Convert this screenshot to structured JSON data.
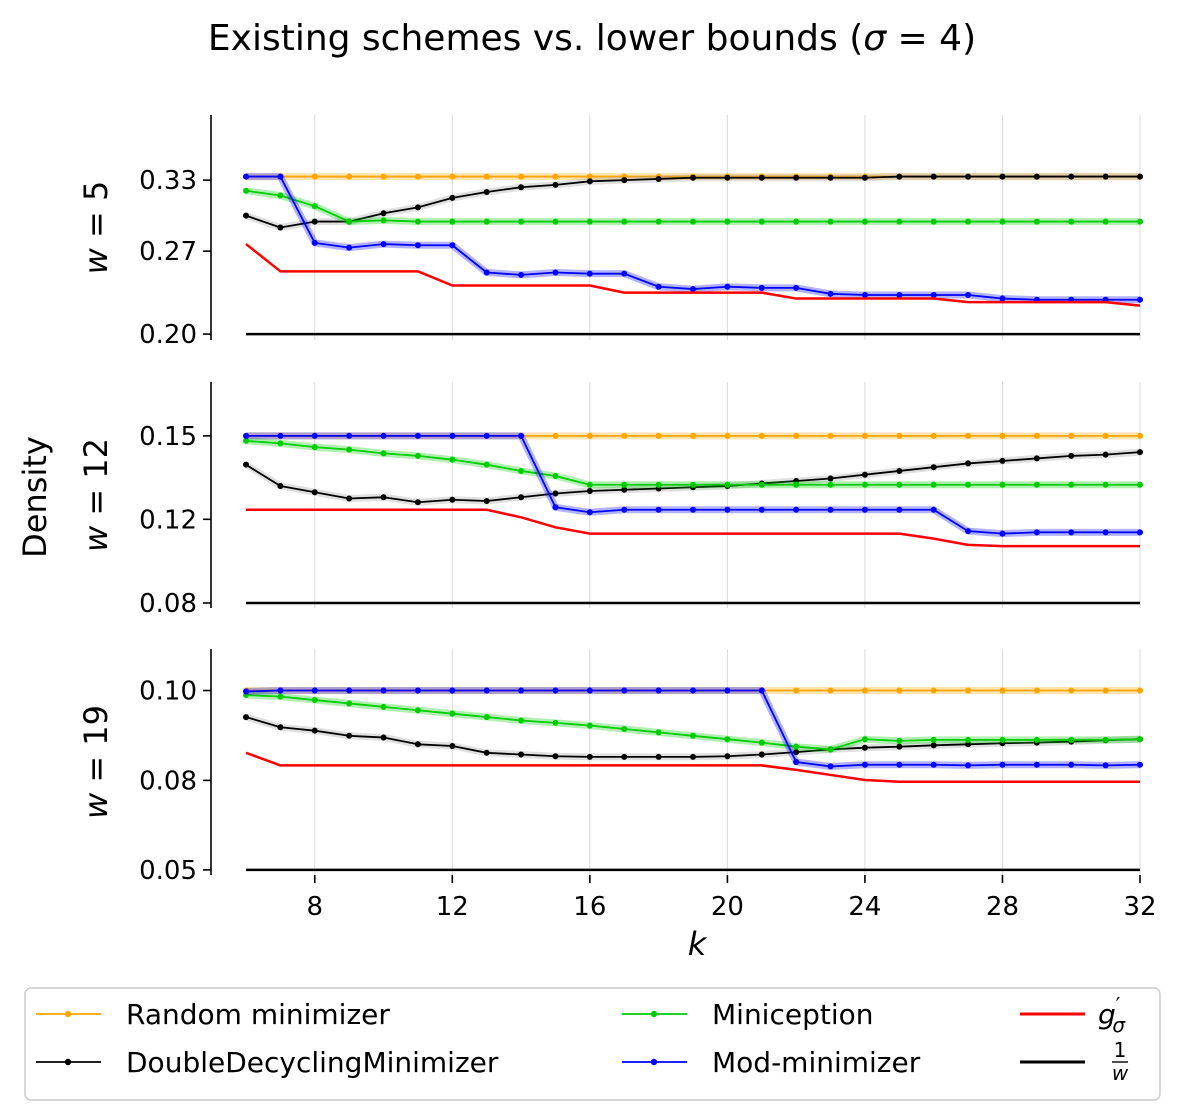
{
  "chart_data": {
    "type": "line",
    "title": "Existing schemes vs. lower bounds (σ = 4)",
    "title_parts": {
      "prefix": "Existing schemes vs. lower bounds (",
      "sigma": "σ",
      "suffix": " = 4)"
    },
    "shared_ylabel": "Density",
    "xlabel": "k",
    "x": [
      6,
      7,
      8,
      9,
      10,
      11,
      12,
      13,
      14,
      15,
      16,
      17,
      18,
      19,
      20,
      21,
      22,
      23,
      24,
      25,
      26,
      27,
      28,
      29,
      30,
      31,
      32
    ],
    "xticks": [
      8,
      12,
      16,
      20,
      24,
      28,
      32
    ],
    "xlim": [
      6,
      32
    ],
    "colors": {
      "random": "#ffa500",
      "double_decycling": "#000000",
      "miniception": "#00cc00",
      "mod": "#0000ff",
      "g_sigma": "#ff0000",
      "inv_w": "#000000"
    },
    "legend": [
      {
        "name": "Random minimizer",
        "key": "random",
        "marker": true
      },
      {
        "name": "DoubleDecyclingMinimizer",
        "key": "double_decycling",
        "marker": true
      },
      {
        "name": "Miniception",
        "key": "miniception",
        "marker": true
      },
      {
        "name": "Mod-minimizer",
        "key": "mod",
        "marker": true
      },
      {
        "name": "g'σ",
        "key": "g_sigma",
        "marker": false
      },
      {
        "name": "1/w",
        "key": "inv_w",
        "marker": false
      }
    ],
    "legend_math": {
      "g": "g",
      "prime": "′",
      "sigma": "σ",
      "frac_num": "1",
      "frac_den": "w"
    },
    "panels": [
      {
        "label": "w = 5",
        "ylabel_w": "w",
        "ylabel_eq": " = 5",
        "yticks": [
          "0.20",
          "0.27",
          "0.33"
        ],
        "ytick_values": [
          0.2,
          0.27,
          0.33
        ],
        "ylim": [
          0.195,
          0.385
        ],
        "series": {
          "random": [
            0.333,
            0.333,
            0.333,
            0.333,
            0.333,
            0.333,
            0.333,
            0.333,
            0.333,
            0.333,
            0.333,
            0.333,
            0.333,
            0.333,
            0.333,
            0.333,
            0.333,
            0.333,
            0.333,
            0.333,
            0.333,
            0.333,
            0.333,
            0.333,
            0.333,
            0.333,
            0.333
          ],
          "double_decycling": [
            0.3,
            0.29,
            0.295,
            0.295,
            0.302,
            0.307,
            0.315,
            0.32,
            0.324,
            0.326,
            0.329,
            0.33,
            0.331,
            0.332,
            0.332,
            0.332,
            0.332,
            0.332,
            0.332,
            0.333,
            0.333,
            0.333,
            0.333,
            0.333,
            0.333,
            0.333,
            0.333
          ],
          "miniception": [
            0.321,
            0.317,
            0.308,
            0.295,
            0.296,
            0.295,
            0.295,
            0.295,
            0.295,
            0.295,
            0.295,
            0.295,
            0.295,
            0.295,
            0.295,
            0.295,
            0.295,
            0.295,
            0.295,
            0.295,
            0.295,
            0.295,
            0.295,
            0.295,
            0.295,
            0.295,
            0.295
          ],
          "mod": [
            0.333,
            0.333,
            0.277,
            0.273,
            0.276,
            0.275,
            0.275,
            0.252,
            0.25,
            0.252,
            0.251,
            0.251,
            0.24,
            0.238,
            0.24,
            0.239,
            0.239,
            0.234,
            0.233,
            0.233,
            0.233,
            0.233,
            0.23,
            0.229,
            0.229,
            0.229,
            0.229
          ],
          "g_sigma": [
            0.276,
            0.253,
            0.253,
            0.253,
            0.253,
            0.253,
            0.241,
            0.241,
            0.241,
            0.241,
            0.241,
            0.235,
            0.235,
            0.235,
            0.235,
            0.235,
            0.23,
            0.23,
            0.23,
            0.23,
            0.23,
            0.227,
            0.227,
            0.227,
            0.227,
            0.227,
            0.224
          ],
          "inv_w": [
            0.2,
            0.2,
            0.2,
            0.2,
            0.2,
            0.2,
            0.2,
            0.2,
            0.2,
            0.2,
            0.2,
            0.2,
            0.2,
            0.2,
            0.2,
            0.2,
            0.2,
            0.2,
            0.2,
            0.2,
            0.2,
            0.2,
            0.2,
            0.2,
            0.2,
            0.2,
            0.2
          ]
        }
      },
      {
        "label": "w = 12",
        "ylabel_w": "w",
        "ylabel_eq": " = 12",
        "yticks": [
          "0.08",
          "0.12",
          "0.15"
        ],
        "ytick_values": [
          0.0833,
          0.1167,
          0.15
        ],
        "ylim": [
          0.0813,
          0.1715
        ],
        "series": {
          "random": [
            0.15,
            0.15,
            0.15,
            0.15,
            0.15,
            0.15,
            0.15,
            0.15,
            0.15,
            0.15,
            0.15,
            0.15,
            0.15,
            0.15,
            0.15,
            0.15,
            0.15,
            0.15,
            0.15,
            0.15,
            0.15,
            0.15,
            0.15,
            0.15,
            0.15,
            0.15,
            0.15
          ],
          "double_decycling": [
            0.1385,
            0.13,
            0.1275,
            0.125,
            0.1255,
            0.1235,
            0.1245,
            0.124,
            0.1255,
            0.127,
            0.128,
            0.1285,
            0.129,
            0.1295,
            0.13,
            0.131,
            0.132,
            0.133,
            0.1345,
            0.136,
            0.1375,
            0.139,
            0.14,
            0.141,
            0.142,
            0.1425,
            0.1435
          ],
          "miniception": [
            0.148,
            0.147,
            0.1455,
            0.1445,
            0.143,
            0.142,
            0.1405,
            0.1385,
            0.136,
            0.134,
            0.1305,
            0.1305,
            0.1305,
            0.1305,
            0.1305,
            0.1305,
            0.1305,
            0.1305,
            0.1305,
            0.1305,
            0.1305,
            0.1305,
            0.1305,
            0.1305,
            0.1305,
            0.1305,
            0.1305
          ],
          "mod": [
            0.15,
            0.15,
            0.15,
            0.15,
            0.15,
            0.15,
            0.15,
            0.15,
            0.15,
            0.1215,
            0.1195,
            0.1205,
            0.1205,
            0.1205,
            0.1205,
            0.1205,
            0.1205,
            0.1205,
            0.1205,
            0.1205,
            0.1205,
            0.112,
            0.111,
            0.1115,
            0.1115,
            0.1115,
            0.1115
          ],
          "g_sigma": [
            0.1205,
            0.1205,
            0.1205,
            0.1205,
            0.1205,
            0.1205,
            0.1205,
            0.1205,
            0.1175,
            0.1135,
            0.111,
            0.111,
            0.111,
            0.111,
            0.111,
            0.111,
            0.111,
            0.111,
            0.111,
            0.111,
            0.109,
            0.1065,
            0.106,
            0.106,
            0.106,
            0.106,
            0.106
          ],
          "inv_w": [
            0.0833,
            0.0833,
            0.0833,
            0.0833,
            0.0833,
            0.0833,
            0.0833,
            0.0833,
            0.0833,
            0.0833,
            0.0833,
            0.0833,
            0.0833,
            0.0833,
            0.0833,
            0.0833,
            0.0833,
            0.0833,
            0.0833,
            0.0833,
            0.0833,
            0.0833,
            0.0833,
            0.0833,
            0.0833,
            0.0833,
            0.0833
          ]
        }
      },
      {
        "label": "w = 19",
        "ylabel_w": "w",
        "ylabel_eq": " = 19",
        "yticks": [
          "0.05",
          "0.08",
          "0.10"
        ],
        "ytick_values": [
          0.0526,
          0.0789,
          0.1053
        ],
        "ylim": [
          0.0511,
          0.1175
        ],
        "series": {
          "random": [
            0.1053,
            0.1053,
            0.1053,
            0.1053,
            0.1053,
            0.1053,
            0.1053,
            0.1053,
            0.1053,
            0.1053,
            0.1053,
            0.1053,
            0.1053,
            0.1053,
            0.1053,
            0.1053,
            0.1053,
            0.1053,
            0.1053,
            0.1053,
            0.1053,
            0.1053,
            0.1053,
            0.1053,
            0.1053,
            0.1053,
            0.1053
          ],
          "double_decycling": [
            0.0975,
            0.0945,
            0.0935,
            0.092,
            0.0915,
            0.0895,
            0.089,
            0.087,
            0.0865,
            0.086,
            0.0858,
            0.0858,
            0.0858,
            0.0858,
            0.086,
            0.0865,
            0.0872,
            0.088,
            0.0885,
            0.0888,
            0.0892,
            0.0895,
            0.0898,
            0.09,
            0.0903,
            0.0907,
            0.091
          ],
          "miniception": [
            0.104,
            0.1035,
            0.1025,
            0.1015,
            0.1005,
            0.0995,
            0.0985,
            0.0975,
            0.0965,
            0.0958,
            0.095,
            0.094,
            0.093,
            0.092,
            0.091,
            0.09,
            0.0888,
            0.088,
            0.091,
            0.0905,
            0.0908,
            0.0908,
            0.0908,
            0.0908,
            0.0908,
            0.0908,
            0.091
          ],
          "mod": [
            0.105,
            0.1053,
            0.1053,
            0.1053,
            0.1053,
            0.1053,
            0.1053,
            0.1053,
            0.1053,
            0.1053,
            0.1053,
            0.1053,
            0.1053,
            0.1053,
            0.1053,
            0.1053,
            0.0843,
            0.083,
            0.0835,
            0.0835,
            0.0835,
            0.0833,
            0.0835,
            0.0835,
            0.0835,
            0.0833,
            0.0835
          ],
          "g_sigma": [
            0.087,
            0.0833,
            0.0833,
            0.0833,
            0.0833,
            0.0833,
            0.0833,
            0.0833,
            0.0833,
            0.0833,
            0.0833,
            0.0833,
            0.0833,
            0.0833,
            0.0833,
            0.0833,
            0.082,
            0.0805,
            0.079,
            0.0785,
            0.0785,
            0.0785,
            0.0785,
            0.0785,
            0.0785,
            0.0785,
            0.0785
          ],
          "inv_w": [
            0.0526,
            0.0526,
            0.0526,
            0.0526,
            0.0526,
            0.0526,
            0.0526,
            0.0526,
            0.0526,
            0.0526,
            0.0526,
            0.0526,
            0.0526,
            0.0526,
            0.0526,
            0.0526,
            0.0526,
            0.0526,
            0.0526,
            0.0526,
            0.0526,
            0.0526,
            0.0526,
            0.0526,
            0.0526,
            0.0526,
            0.0526
          ]
        }
      }
    ]
  }
}
